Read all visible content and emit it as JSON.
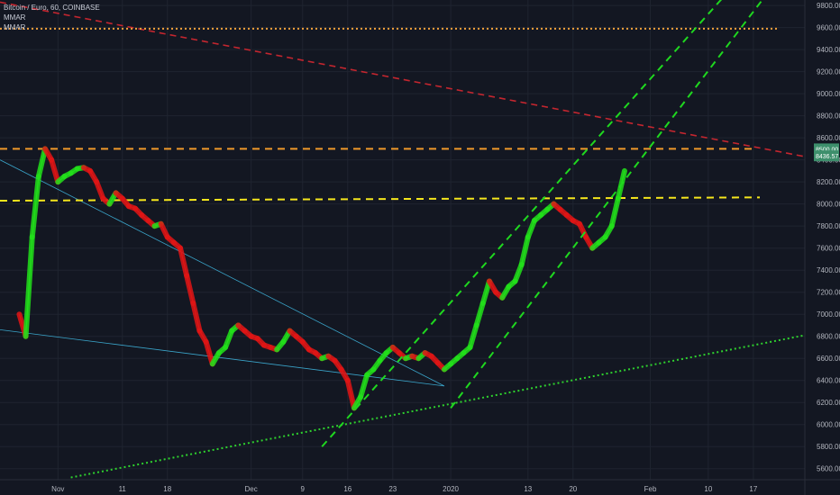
{
  "legend": {
    "symbol": "Bitcoin / Euro, 60, COINBASE",
    "indicators": [
      "MMAR",
      "MMAR"
    ]
  },
  "colors": {
    "background": "#131722",
    "grid": "#1f2430",
    "axis_text": "#b2b5be",
    "ribbon_up": "#22e01a",
    "ribbon_down": "#e01515",
    "channel": "#1fd81f",
    "support_dotted": "#2ed12e",
    "resistance_red": "#c4262f",
    "orange_level": "#f09a2a",
    "yellow_level": "#f5e61c",
    "top_dotted": "#f5a13c",
    "thin_trend": "#3aa4c9",
    "price_tag": "#3d8f6c"
  },
  "chart_data": {
    "type": "line",
    "title": "Bitcoin / Euro, 60, COINBASE",
    "xlabel": "",
    "ylabel": "",
    "x_ticks": [
      "Nov",
      "11",
      "18",
      "Dec",
      "9",
      "16",
      "23",
      "2020",
      "13",
      "20",
      "Feb",
      "10",
      "17"
    ],
    "x_tick_dates": [
      "2019-11-01",
      "2019-11-11",
      "2019-11-18",
      "2019-12-01",
      "2019-12-09",
      "2019-12-16",
      "2019-12-23",
      "2020-01-01",
      "2020-01-13",
      "2020-01-20",
      "2020-02-01",
      "2020-02-10",
      "2020-02-17"
    ],
    "y_ticks": [
      "9800.00",
      "9600.00",
      "9400.00",
      "9200.00",
      "9000.00",
      "8800.00",
      "8600.00",
      "8400.00",
      "8200.00",
      "8000.00",
      "7800.00",
      "7600.00",
      "7400.00",
      "7200.00",
      "7000.00",
      "6800.00",
      "6600.00",
      "6400.00",
      "6200.00",
      "6000.00",
      "5800.00",
      "5600.00"
    ],
    "ylim": [
      5500,
      9850
    ],
    "y_axis_side": "right",
    "grid": true,
    "price_tags": [
      "8500.00",
      "8436.57"
    ],
    "series": [
      {
        "name": "MMAR",
        "kind": "ribbon",
        "points": [
          [
            "2019-10-26",
            7000
          ],
          [
            "2019-10-27",
            6800
          ],
          [
            "2019-10-28",
            7700
          ],
          [
            "2019-10-29",
            8250
          ],
          [
            "2019-10-30",
            8500
          ],
          [
            "2019-10-31",
            8400
          ],
          [
            "2019-11-01",
            8200
          ],
          [
            "2019-11-02",
            8250
          ],
          [
            "2019-11-03",
            8280
          ],
          [
            "2019-11-04",
            8320
          ],
          [
            "2019-11-05",
            8330
          ],
          [
            "2019-11-06",
            8300
          ],
          [
            "2019-11-07",
            8200
          ],
          [
            "2019-11-08",
            8050
          ],
          [
            "2019-11-09",
            8000
          ],
          [
            "2019-11-10",
            8100
          ],
          [
            "2019-11-11",
            8050
          ],
          [
            "2019-11-12",
            7980
          ],
          [
            "2019-11-13",
            7960
          ],
          [
            "2019-11-14",
            7900
          ],
          [
            "2019-11-15",
            7850
          ],
          [
            "2019-11-16",
            7800
          ],
          [
            "2019-11-17",
            7820
          ],
          [
            "2019-11-18",
            7700
          ],
          [
            "2019-11-19",
            7650
          ],
          [
            "2019-11-20",
            7600
          ],
          [
            "2019-11-21",
            7350
          ],
          [
            "2019-11-22",
            7100
          ],
          [
            "2019-11-23",
            6850
          ],
          [
            "2019-11-24",
            6750
          ],
          [
            "2019-11-25",
            6550
          ],
          [
            "2019-11-26",
            6650
          ],
          [
            "2019-11-27",
            6700
          ],
          [
            "2019-11-28",
            6850
          ],
          [
            "2019-11-29",
            6900
          ],
          [
            "2019-11-30",
            6850
          ],
          [
            "2019-12-01",
            6800
          ],
          [
            "2019-12-02",
            6780
          ],
          [
            "2019-12-03",
            6720
          ],
          [
            "2019-12-04",
            6700
          ],
          [
            "2019-12-05",
            6680
          ],
          [
            "2019-12-06",
            6750
          ],
          [
            "2019-12-07",
            6850
          ],
          [
            "2019-12-08",
            6800
          ],
          [
            "2019-12-09",
            6750
          ],
          [
            "2019-12-10",
            6680
          ],
          [
            "2019-12-11",
            6650
          ],
          [
            "2019-12-12",
            6600
          ],
          [
            "2019-12-13",
            6620
          ],
          [
            "2019-12-14",
            6580
          ],
          [
            "2019-12-15",
            6500
          ],
          [
            "2019-12-16",
            6400
          ],
          [
            "2019-12-17",
            6150
          ],
          [
            "2019-12-18",
            6250
          ],
          [
            "2019-12-19",
            6450
          ],
          [
            "2019-12-20",
            6500
          ],
          [
            "2019-12-21",
            6580
          ],
          [
            "2019-12-22",
            6650
          ],
          [
            "2019-12-23",
            6700
          ],
          [
            "2019-12-24",
            6650
          ],
          [
            "2019-12-25",
            6600
          ],
          [
            "2019-12-26",
            6620
          ],
          [
            "2019-12-27",
            6600
          ],
          [
            "2019-12-28",
            6650
          ],
          [
            "2019-12-29",
            6620
          ],
          [
            "2019-12-30",
            6560
          ],
          [
            "2019-12-31",
            6500
          ],
          [
            "2020-01-01",
            6550
          ],
          [
            "2020-01-02",
            6600
          ],
          [
            "2020-01-03",
            6650
          ],
          [
            "2020-01-04",
            6700
          ],
          [
            "2020-01-05",
            6900
          ],
          [
            "2020-01-06",
            7100
          ],
          [
            "2020-01-07",
            7300
          ],
          [
            "2020-01-08",
            7200
          ],
          [
            "2020-01-09",
            7150
          ],
          [
            "2020-01-10",
            7250
          ],
          [
            "2020-01-11",
            7300
          ],
          [
            "2020-01-12",
            7450
          ],
          [
            "2020-01-13",
            7700
          ],
          [
            "2020-01-14",
            7850
          ],
          [
            "2020-01-15",
            7900
          ],
          [
            "2020-01-16",
            7950
          ],
          [
            "2020-01-17",
            8000
          ],
          [
            "2020-01-18",
            7950
          ],
          [
            "2020-01-19",
            7900
          ],
          [
            "2020-01-20",
            7850
          ],
          [
            "2020-01-21",
            7820
          ],
          [
            "2020-01-22",
            7700
          ],
          [
            "2020-01-23",
            7600
          ],
          [
            "2020-01-24",
            7650
          ],
          [
            "2020-01-25",
            7700
          ],
          [
            "2020-01-26",
            7800
          ],
          [
            "2020-01-27",
            8050
          ],
          [
            "2020-01-28",
            8300
          ]
        ]
      }
    ]
  }
}
